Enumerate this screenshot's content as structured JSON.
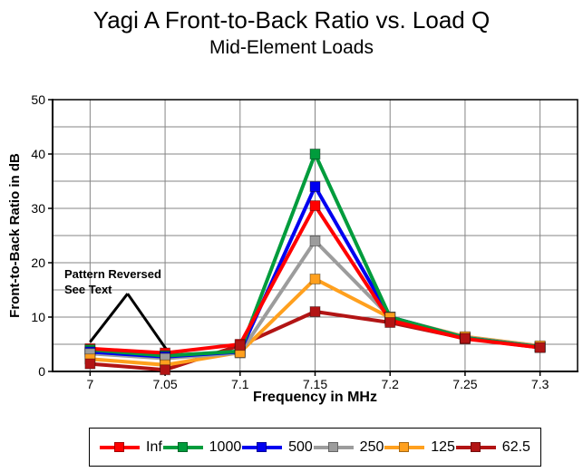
{
  "header": {
    "title": "Yagi A Front-to-Back Ratio vs. Load Q",
    "subtitle": "Mid-Element Loads"
  },
  "colors": {
    "grid": "#858585",
    "axis": "#000000",
    "background": "#ffffff",
    "annotation": "#000000"
  },
  "chart_data": {
    "type": "line",
    "title": "Yagi A Front-to-Back Ratio vs. Load Q",
    "subtitle": "Mid-Element Loads",
    "xlabel": "Frequency in MHz",
    "ylabel": "Front-to-Back Ratio in dB",
    "x": [
      7,
      7.05,
      7.1,
      7.15,
      7.2,
      7.25,
      7.3
    ],
    "x_tick_labels": [
      "7",
      "7.05",
      "7.1",
      "7.15",
      "7.2",
      "7.25",
      "7.3"
    ],
    "y_ticks": [
      0,
      10,
      20,
      30,
      40,
      50
    ],
    "y_grid_step": 5,
    "xlim": [
      6.975,
      7.325
    ],
    "ylim": [
      0,
      50
    ],
    "grid": true,
    "legend_position": "bottom",
    "series": [
      {
        "name": "Inf",
        "color": "#FF0000",
        "values": [
          4.2,
          3.4,
          5.0,
          30.5,
          9.4,
          6.0,
          4.4
        ]
      },
      {
        "name": "1000",
        "color": "#009C3C",
        "values": [
          4.0,
          2.9,
          3.7,
          40.0,
          10.0,
          6.2,
          4.5
        ]
      },
      {
        "name": "500",
        "color": "#0000F0",
        "values": [
          3.6,
          2.7,
          3.6,
          34.0,
          10.0,
          6.2,
          4.5
        ]
      },
      {
        "name": "250",
        "color": "#9C9C9C",
        "values": [
          3.3,
          2.4,
          3.4,
          24.0,
          10.0,
          6.3,
          4.6
        ]
      },
      {
        "name": "125",
        "color": "#FFA01E",
        "values": [
          2.3,
          1.2,
          3.5,
          17.0,
          9.9,
          6.4,
          4.7
        ]
      },
      {
        "name": "62.5",
        "color": "#B21414",
        "values": [
          1.4,
          0.3,
          4.8,
          11.0,
          9.0,
          6.1,
          4.4
        ]
      }
    ],
    "annotation": {
      "line1": "Pattern Reversed",
      "line2": "See Text",
      "apex": [
        7.025,
        14.3
      ],
      "targets": [
        [
          7.0,
          5.4
        ],
        [
          7.051,
          4.0
        ]
      ]
    }
  }
}
